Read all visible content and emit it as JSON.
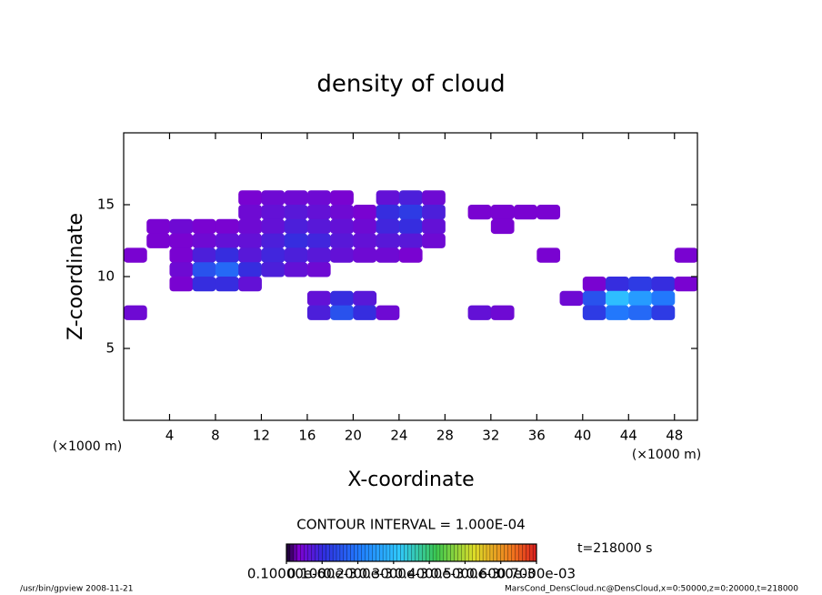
{
  "chart_data": {
    "type": "heatmap",
    "title": "density of cloud",
    "x_label": "X-coordinate",
    "y_label": "Z-coordinate",
    "x_unit": "(×1000 m)",
    "contour_interval": "CONTOUR INTERVAL = 1.000E-04",
    "time_label": "t=218000 s",
    "footer_left": "/usr/bin/gpview  2008-11-21",
    "footer_right": "MarsCond_DensCloud.nc@DensCloud,x=0:50000,z=0:20000,t=218000",
    "xlim": [
      0,
      50
    ],
    "xticks": [
      4,
      8,
      12,
      16,
      20,
      24,
      28,
      32,
      36,
      40,
      44,
      48
    ],
    "ylim": [
      0,
      20
    ],
    "yticks": [
      5,
      10,
      15
    ],
    "x": [
      1,
      3,
      5,
      7,
      9,
      11,
      13,
      15,
      17,
      19,
      21,
      23,
      25,
      27,
      29,
      31,
      33,
      35,
      37,
      39,
      41,
      43,
      45,
      47,
      49
    ],
    "z": [
      15.5,
      14.5,
      13.5,
      12.5,
      11.5,
      10.5,
      9.5,
      8.5,
      7.5
    ],
    "values": [
      [
        null,
        null,
        null,
        null,
        null,
        4e-05,
        5e-05,
        5e-05,
        5e-05,
        4e-05,
        null,
        6e-05,
        8e-05,
        5e-05,
        null,
        null,
        null,
        null,
        null,
        null,
        null,
        null,
        null,
        null,
        null
      ],
      [
        null,
        null,
        null,
        null,
        null,
        5e-05,
        6e-05,
        7e-05,
        6e-05,
        5e-05,
        4e-05,
        0.0001,
        0.00012,
        8e-05,
        null,
        4e-05,
        4e-05,
        4e-05,
        4e-05,
        null,
        null,
        null,
        null,
        null,
        null
      ],
      [
        null,
        4e-05,
        5e-05,
        4e-05,
        4e-05,
        5e-05,
        6e-05,
        8e-05,
        7e-05,
        6e-05,
        5e-05,
        9e-05,
        0.0001,
        6e-05,
        null,
        null,
        4e-05,
        null,
        null,
        null,
        null,
        null,
        null,
        null,
        null
      ],
      [
        null,
        4e-05,
        4e-05,
        5e-05,
        6e-05,
        6e-05,
        8e-05,
        0.0001,
        9e-05,
        7e-05,
        6e-05,
        7e-05,
        7e-05,
        5e-05,
        null,
        null,
        null,
        null,
        null,
        null,
        null,
        null,
        null,
        null,
        null
      ],
      [
        4e-05,
        null,
        4e-05,
        8e-05,
        0.0001,
        7e-05,
        9e-05,
        8e-05,
        7e-05,
        6e-05,
        5e-05,
        5e-05,
        4e-05,
        null,
        null,
        null,
        null,
        null,
        4e-05,
        null,
        null,
        null,
        null,
        null,
        4e-05
      ],
      [
        null,
        null,
        5e-05,
        0.00015,
        0.00018,
        0.0001,
        8e-05,
        6e-05,
        5e-05,
        null,
        null,
        null,
        null,
        null,
        null,
        null,
        null,
        null,
        null,
        null,
        null,
        null,
        null,
        null,
        null
      ],
      [
        null,
        null,
        4e-05,
        0.0001,
        0.0001,
        6e-05,
        null,
        null,
        null,
        null,
        null,
        null,
        null,
        null,
        null,
        null,
        null,
        null,
        null,
        null,
        4e-05,
        0.0001,
        0.00012,
        0.0001,
        4e-05
      ],
      [
        null,
        null,
        null,
        null,
        null,
        null,
        null,
        null,
        6e-05,
        0.0001,
        7e-05,
        null,
        null,
        null,
        null,
        null,
        null,
        null,
        null,
        5e-05,
        0.00015,
        0.0003,
        0.00025,
        0.0002,
        null
      ],
      [
        5e-05,
        null,
        null,
        null,
        null,
        null,
        null,
        null,
        8e-05,
        0.00015,
        0.0001,
        5e-05,
        null,
        null,
        null,
        6e-05,
        5e-05,
        null,
        null,
        null,
        0.00012,
        0.0002,
        0.00018,
        0.00012,
        null
      ]
    ],
    "colorbar_lim": [
      1e-07,
      0.0007
    ],
    "colorbar_ticks": [
      {
        "value": 1e-07,
        "label": "0.10000e-6"
      },
      {
        "value": 0.0001,
        "label": "0.1000e-3"
      },
      {
        "value": 0.0002,
        "label": "0.2000e-3"
      },
      {
        "value": 0.0003,
        "label": "0.3000e-3"
      },
      {
        "value": 0.0004,
        "label": "0.4000e-3"
      },
      {
        "value": 0.0005,
        "label": "0.5000e-3"
      },
      {
        "value": 0.0006,
        "label": "0.6000e-3"
      },
      {
        "value": 0.0007,
        "label": "0.7000e-03"
      }
    ]
  }
}
